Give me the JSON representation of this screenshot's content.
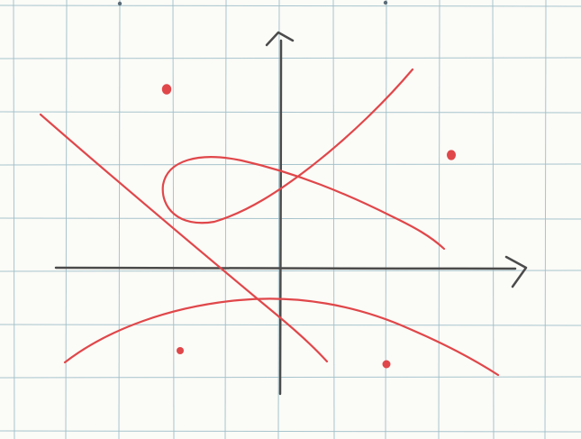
{
  "colors": {
    "paper": "#fbfbf7",
    "grid": "#9fbfc9",
    "axes": "#4b4b4b",
    "curve": "#e0474a",
    "dot": "#e0474a",
    "hole_punch": "#5b6b78"
  },
  "elements": {
    "grid": "square-grid-paper",
    "axes": [
      "x-axis-arrow",
      "y-axis-arrow"
    ],
    "curves": [
      "descending-straight-line",
      "loop-curve",
      "downward-opening-arc"
    ],
    "points": [
      "dot-upper-left",
      "dot-right",
      "dot-lower-left",
      "dot-lower-middle"
    ]
  }
}
